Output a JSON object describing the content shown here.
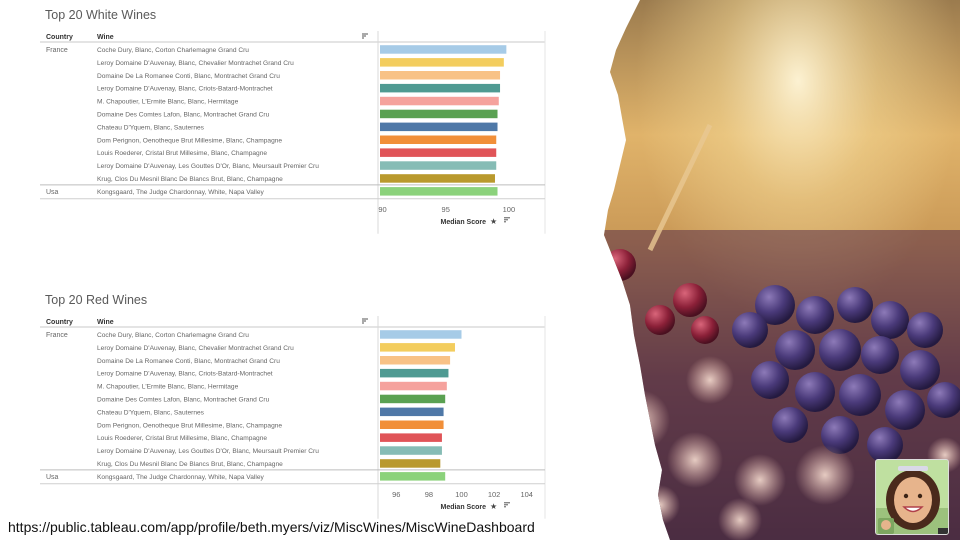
{
  "footer": {
    "url": "https://public.tableau.com/app/profile/beth.myers/viz/MiscWines/MiscWineDashboard"
  },
  "colors": [
    "#a6cbe7",
    "#f3cd5e",
    "#f8c286",
    "#4f9a92",
    "#f5a29d",
    "#5aa152",
    "#4f78a7",
    "#f18f39",
    "#e05458",
    "#86bcb5",
    "#b9992d",
    "#8bd27b"
  ],
  "chart_data": [
    {
      "type": "bar",
      "orientation": "horizontal",
      "title": "Top 20 White Wines",
      "column_headers": [
        "Country",
        "Wine"
      ],
      "x_label": "Median Score",
      "x_ticks": [
        90,
        95,
        100
      ],
      "xlim": [
        89.8,
        102.7
      ],
      "rows": [
        {
          "country": "France",
          "wine": "Coche Dury, Blanc, Corton Charlemagne Grand Cru",
          "value": 99.8
        },
        {
          "country": "",
          "wine": "Leroy Domaine D'Auvenay, Blanc, Chevalier Montrachet Grand Cru",
          "value": 99.6
        },
        {
          "country": "",
          "wine": "Domaine De La Romanee Conti, Blanc, Montrachet Grand Cru",
          "value": 99.3
        },
        {
          "country": "",
          "wine": "Leroy Domaine D'Auvenay, Blanc, Criots-Batard-Montrachet",
          "value": 99.3
        },
        {
          "country": "",
          "wine": "M. Chapoutier, L'Ermite Blanc, Blanc, Hermitage",
          "value": 99.2
        },
        {
          "country": "",
          "wine": "Domaine Des Comtes Lafon, Blanc, Montrachet Grand Cru",
          "value": 99.1
        },
        {
          "country": "",
          "wine": "Chateau D'Yquem, Blanc, Sauternes",
          "value": 99.1
        },
        {
          "country": "",
          "wine": "Dom Perignon, Oenotheque Brut Millesime, Blanc, Champagne",
          "value": 99.0
        },
        {
          "country": "",
          "wine": "Louis Roederer, Cristal Brut Millesime, Blanc, Champagne",
          "value": 99.0
        },
        {
          "country": "",
          "wine": "Leroy Domaine D'Auvenay, Les Gouttes D'Or, Blanc, Meursault Premier Cru",
          "value": 99.0
        },
        {
          "country": "",
          "wine": "Krug, Clos Du Mesnil Blanc De Blancs Brut, Blanc, Champagne",
          "value": 98.9
        },
        {
          "country": "Usa",
          "wine": "Kongsgaard, The Judge Chardonnay, White, Napa Valley",
          "value": 99.1
        }
      ]
    },
    {
      "type": "bar",
      "orientation": "horizontal",
      "title": "Top 20 Red Wines",
      "column_headers": [
        "Country",
        "Wine"
      ],
      "x_label": "Median Score",
      "x_ticks": [
        96,
        98,
        100,
        102,
        104
      ],
      "xlim": [
        95.0,
        105.0
      ],
      "rows": [
        {
          "country": "France",
          "wine": "Coche Dury, Blanc, Corton Charlemagne Grand Cru",
          "value": 100.0
        },
        {
          "country": "",
          "wine": "Leroy Domaine D'Auvenay, Blanc, Chevalier Montrachet Grand Cru",
          "value": 99.6
        },
        {
          "country": "",
          "wine": "Domaine De La Romanee Conti, Blanc, Montrachet Grand Cru",
          "value": 99.3
        },
        {
          "country": "",
          "wine": "Leroy Domaine D'Auvenay, Blanc, Criots-Batard-Montrachet",
          "value": 99.2
        },
        {
          "country": "",
          "wine": "M. Chapoutier, L'Ermite Blanc, Blanc, Hermitage",
          "value": 99.1
        },
        {
          "country": "",
          "wine": "Domaine Des Comtes Lafon, Blanc, Montrachet Grand Cru",
          "value": 99.0
        },
        {
          "country": "",
          "wine": "Chateau D'Yquem, Blanc, Sauternes",
          "value": 98.9
        },
        {
          "country": "",
          "wine": "Dom Perignon, Oenotheque Brut Millesime, Blanc, Champagne",
          "value": 98.9
        },
        {
          "country": "",
          "wine": "Louis Roederer, Cristal Brut Millesime, Blanc, Champagne",
          "value": 98.8
        },
        {
          "country": "",
          "wine": "Leroy Domaine D'Auvenay, Les Gouttes D'Or, Blanc, Meursault Premier Cru",
          "value": 98.8
        },
        {
          "country": "",
          "wine": "Krug, Clos Du Mesnil Blanc De Blancs Brut, Blanc, Champagne",
          "value": 98.7
        },
        {
          "country": "Usa",
          "wine": "Kongsgaard, The Judge Chardonnay, White, Napa Valley",
          "value": 99.0
        }
      ]
    }
  ]
}
